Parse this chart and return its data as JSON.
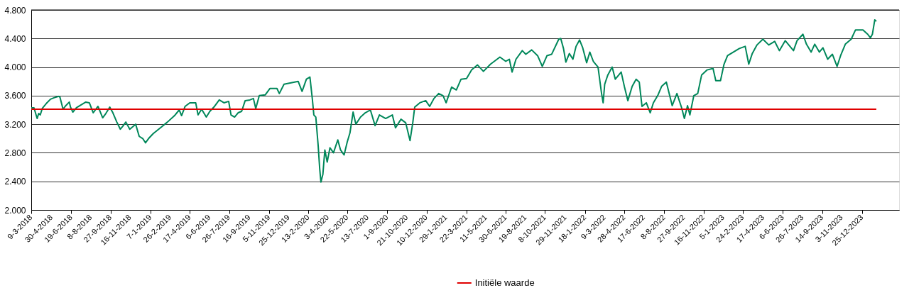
{
  "chart_data": {
    "type": "line",
    "x": [
      "2018-03-09",
      "2018-03-16",
      "2018-03-24",
      "2018-03-28",
      "2018-04-01",
      "2018-04-06",
      "2018-04-18",
      "2018-04-27",
      "2018-05-06",
      "2018-05-18",
      "2018-05-21",
      "2018-05-29",
      "2018-06-05",
      "2018-06-14",
      "2018-06-17",
      "2018-06-23",
      "2018-07-02",
      "2018-07-14",
      "2018-07-26",
      "2018-08-04",
      "2018-08-14",
      "2018-08-26",
      "2018-09-07",
      "2018-09-15",
      "2018-09-25",
      "2018-10-03",
      "2018-10-13",
      "2018-10-22",
      "2018-10-28",
      "2018-11-05",
      "2018-11-15",
      "2018-11-30",
      "2018-12-09",
      "2018-12-18",
      "2018-12-25",
      "2019-01-02",
      "2019-01-14",
      "2019-02-01",
      "2019-02-19",
      "2019-03-09",
      "2019-03-21",
      "2019-03-27",
      "2019-04-05",
      "2019-04-17",
      "2019-05-02",
      "2019-05-08",
      "2019-05-17",
      "2019-05-29",
      "2019-06-07",
      "2019-06-19",
      "2019-07-01",
      "2019-07-13",
      "2019-07-25",
      "2019-07-31",
      "2019-08-09",
      "2019-08-18",
      "2019-08-27",
      "2019-09-05",
      "2019-09-17",
      "2019-09-26",
      "2019-10-02",
      "2019-10-11",
      "2019-10-26",
      "2019-11-07",
      "2019-11-25",
      "2019-12-01",
      "2019-12-13",
      "2019-12-31",
      "2020-01-18",
      "2020-01-28",
      "2020-02-08",
      "2020-02-17",
      "2020-02-23",
      "2020-02-27",
      "2020-03-03",
      "2020-03-09",
      "2020-03-13",
      "2020-03-16",
      "2020-03-21",
      "2020-03-26",
      "2020-04-01",
      "2020-04-08",
      "2020-04-17",
      "2020-04-28",
      "2020-05-05",
      "2020-05-14",
      "2020-05-22",
      "2020-05-29",
      "2020-06-06",
      "2020-06-13",
      "2020-06-25",
      "2020-07-07",
      "2020-07-20",
      "2020-08-01",
      "2020-08-12",
      "2020-08-28",
      "2020-09-14",
      "2020-09-22",
      "2020-10-06",
      "2020-10-18",
      "2020-10-29",
      "2020-11-05",
      "2020-11-10",
      "2020-11-23",
      "2020-12-08",
      "2020-12-18",
      "2020-12-29",
      "2021-01-10",
      "2021-01-21",
      "2021-01-29",
      "2021-02-12",
      "2021-02-24",
      "2021-03-08",
      "2021-03-22",
      "2021-04-04",
      "2021-04-19",
      "2021-05-04",
      "2021-05-22",
      "2021-06-15",
      "2021-06-30",
      "2021-07-09",
      "2021-07-16",
      "2021-07-26",
      "2021-08-11",
      "2021-08-20",
      "2021-09-04",
      "2021-09-19",
      "2021-10-01",
      "2021-10-13",
      "2021-10-25",
      "2021-11-12",
      "2021-11-17",
      "2021-11-24",
      "2021-11-30",
      "2021-12-09",
      "2021-12-18",
      "2021-12-26",
      "2022-01-04",
      "2022-01-12",
      "2022-01-22",
      "2022-01-30",
      "2022-02-08",
      "2022-02-20",
      "2022-03-01",
      "2022-03-05",
      "2022-03-09",
      "2022-03-17",
      "2022-03-28",
      "2022-04-05",
      "2022-04-20",
      "2022-04-28",
      "2022-05-07",
      "2022-05-18",
      "2022-05-28",
      "2022-06-05",
      "2022-06-12",
      "2022-06-23",
      "2022-07-03",
      "2022-07-11",
      "2022-07-22",
      "2022-08-01",
      "2022-08-13",
      "2022-08-28",
      "2022-09-09",
      "2022-09-21",
      "2022-09-28",
      "2022-10-06",
      "2022-10-12",
      "2022-10-22",
      "2022-11-01",
      "2022-11-11",
      "2022-11-25",
      "2022-12-10",
      "2022-12-17",
      "2022-12-29",
      "2023-01-07",
      "2023-01-16",
      "2023-01-31",
      "2023-02-15",
      "2023-03-02",
      "2023-03-11",
      "2023-03-20",
      "2023-04-01",
      "2023-04-16",
      "2023-05-01",
      "2023-05-16",
      "2023-05-28",
      "2023-06-12",
      "2023-06-24",
      "2023-07-03",
      "2023-07-12",
      "2023-07-27",
      "2023-08-05",
      "2023-08-17",
      "2023-08-26",
      "2023-09-07",
      "2023-09-16",
      "2023-09-28",
      "2023-10-10",
      "2023-10-22",
      "2023-10-31",
      "2023-11-12",
      "2023-11-27",
      "2023-12-08",
      "2023-12-27",
      "2024-01-08",
      "2024-01-15",
      "2024-01-20",
      "2024-01-26",
      "2024-01-30"
    ],
    "series": [
      {
        "color": "#00875a",
        "values": [
          3430,
          3430,
          3280,
          3350,
          3330,
          3420,
          3500,
          3550,
          3570,
          3590,
          3580,
          3410,
          3460,
          3510,
          3440,
          3370,
          3430,
          3470,
          3510,
          3500,
          3360,
          3450,
          3290,
          3350,
          3440,
          3360,
          3230,
          3130,
          3170,
          3230,
          3130,
          3200,
          3030,
          3000,
          2940,
          3000,
          3070,
          3150,
          3230,
          3320,
          3400,
          3320,
          3450,
          3500,
          3500,
          3330,
          3410,
          3300,
          3380,
          3450,
          3540,
          3500,
          3520,
          3330,
          3300,
          3360,
          3380,
          3530,
          3540,
          3560,
          3420,
          3600,
          3610,
          3700,
          3700,
          3630,
          3760,
          3780,
          3800,
          3660,
          3830,
          3860,
          3560,
          3330,
          3300,
          2900,
          2570,
          2390,
          2500,
          2840,
          2670,
          2870,
          2800,
          2980,
          2840,
          2770,
          2950,
          3080,
          3370,
          3200,
          3300,
          3360,
          3400,
          3180,
          3330,
          3280,
          3330,
          3150,
          3270,
          3220,
          2970,
          3220,
          3440,
          3500,
          3530,
          3450,
          3560,
          3630,
          3600,
          3500,
          3720,
          3680,
          3830,
          3840,
          3960,
          4030,
          3940,
          4040,
          4140,
          4080,
          4110,
          3930,
          4110,
          4230,
          4180,
          4240,
          4160,
          4010,
          4160,
          4180,
          4390,
          4400,
          4260,
          4070,
          4190,
          4110,
          4290,
          4380,
          4270,
          4060,
          4210,
          4080,
          4000,
          3630,
          3500,
          3760,
          3890,
          4000,
          3830,
          3930,
          3730,
          3530,
          3730,
          3830,
          3790,
          3450,
          3500,
          3360,
          3500,
          3600,
          3730,
          3790,
          3460,
          3630,
          3430,
          3280,
          3460,
          3330,
          3600,
          3630,
          3890,
          3960,
          3980,
          3810,
          3810,
          4040,
          4160,
          4210,
          4260,
          4290,
          4040,
          4190,
          4310,
          4390,
          4310,
          4360,
          4230,
          4370,
          4290,
          4230,
          4370,
          4460,
          4320,
          4210,
          4320,
          4210,
          4270,
          4110,
          4180,
          4010,
          4160,
          4320,
          4390,
          4520,
          4520,
          4460,
          4410,
          4460,
          4660,
          4640
        ]
      }
    ],
    "ref_lines": [
      {
        "axis": "y",
        "value": 3410,
        "label": "Initiële waarde",
        "color": "#e00000"
      }
    ],
    "xlim": [
      "2018-03-09",
      "2024-03-28"
    ],
    "xticks": [
      {
        "value": "2018-03-09",
        "label": "9-3-2018"
      },
      {
        "value": "2018-04-30",
        "label": "30-4-2018"
      },
      {
        "value": "2018-06-19",
        "label": "19-6-2018"
      },
      {
        "value": "2018-08-08",
        "label": "8-8-2018"
      },
      {
        "value": "2018-09-27",
        "label": "27-9-2018"
      },
      {
        "value": "2018-11-16",
        "label": "16-11-2018"
      },
      {
        "value": "2019-01-07",
        "label": "7-1-2019"
      },
      {
        "value": "2019-02-26",
        "label": "26-2-2019"
      },
      {
        "value": "2019-04-17",
        "label": "17-4-2019"
      },
      {
        "value": "2019-06-06",
        "label": "6-6-2019"
      },
      {
        "value": "2019-07-26",
        "label": "26-7-2019"
      },
      {
        "value": "2019-09-16",
        "label": "16-9-2019"
      },
      {
        "value": "2019-11-05",
        "label": "5-11-2019"
      },
      {
        "value": "2019-12-25",
        "label": "25-12-2019"
      },
      {
        "value": "2020-02-13",
        "label": "13-2-2020"
      },
      {
        "value": "2020-04-03",
        "label": "3-4-2020"
      },
      {
        "value": "2020-05-22",
        "label": "22-5-2020"
      },
      {
        "value": "2020-07-13",
        "label": "13-7-2020"
      },
      {
        "value": "2020-09-01",
        "label": "1-9-2020"
      },
      {
        "value": "2020-10-21",
        "label": "21-10-2020"
      },
      {
        "value": "2020-12-10",
        "label": "10-12-2020"
      },
      {
        "value": "2021-01-29",
        "label": "29-1-2021"
      },
      {
        "value": "2021-03-22",
        "label": "22-3-2021"
      },
      {
        "value": "2021-05-11",
        "label": "11-5-2021"
      },
      {
        "value": "2021-06-30",
        "label": "30-6-2021"
      },
      {
        "value": "2021-08-19",
        "label": "19-8-2021"
      },
      {
        "value": "2021-10-08",
        "label": "8-10-2021"
      },
      {
        "value": "2021-11-29",
        "label": "29-11-2021"
      },
      {
        "value": "2022-01-18",
        "label": "18-1-2022"
      },
      {
        "value": "2022-03-09",
        "label": "9-3-2022"
      },
      {
        "value": "2022-04-28",
        "label": "28-4-2022"
      },
      {
        "value": "2022-06-17",
        "label": "17-6-2022"
      },
      {
        "value": "2022-08-08",
        "label": "8-8-2022"
      },
      {
        "value": "2022-09-27",
        "label": "27-9-2022"
      },
      {
        "value": "2022-11-16",
        "label": "16-11-2022"
      },
      {
        "value": "2023-01-05",
        "label": "5-1-2023"
      },
      {
        "value": "2023-02-24",
        "label": "24-2-2023"
      },
      {
        "value": "2023-04-17",
        "label": "17-4-2023"
      },
      {
        "value": "2023-06-06",
        "label": "6-6-2023"
      },
      {
        "value": "2023-07-26",
        "label": "26-7-2023"
      },
      {
        "value": "2023-09-14",
        "label": "14-9-2023"
      },
      {
        "value": "2023-11-03",
        "label": "3-11-2023"
      },
      {
        "value": "2023-12-25",
        "label": "25-12-2023"
      }
    ],
    "ylim": [
      2000,
      4800
    ],
    "yticks": [
      {
        "value": 2000,
        "label": "2.000"
      },
      {
        "value": 2400,
        "label": "2.400"
      },
      {
        "value": 2800,
        "label": "2.800"
      },
      {
        "value": 3200,
        "label": "3.200"
      },
      {
        "value": 3600,
        "label": "3.600"
      },
      {
        "value": 4000,
        "label": "4.000"
      },
      {
        "value": 4400,
        "label": "4.400"
      },
      {
        "value": 4800,
        "label": "4.800"
      }
    ],
    "grid": "y",
    "legend": "bottom",
    "marker": "none",
    "line_style": "solid"
  }
}
